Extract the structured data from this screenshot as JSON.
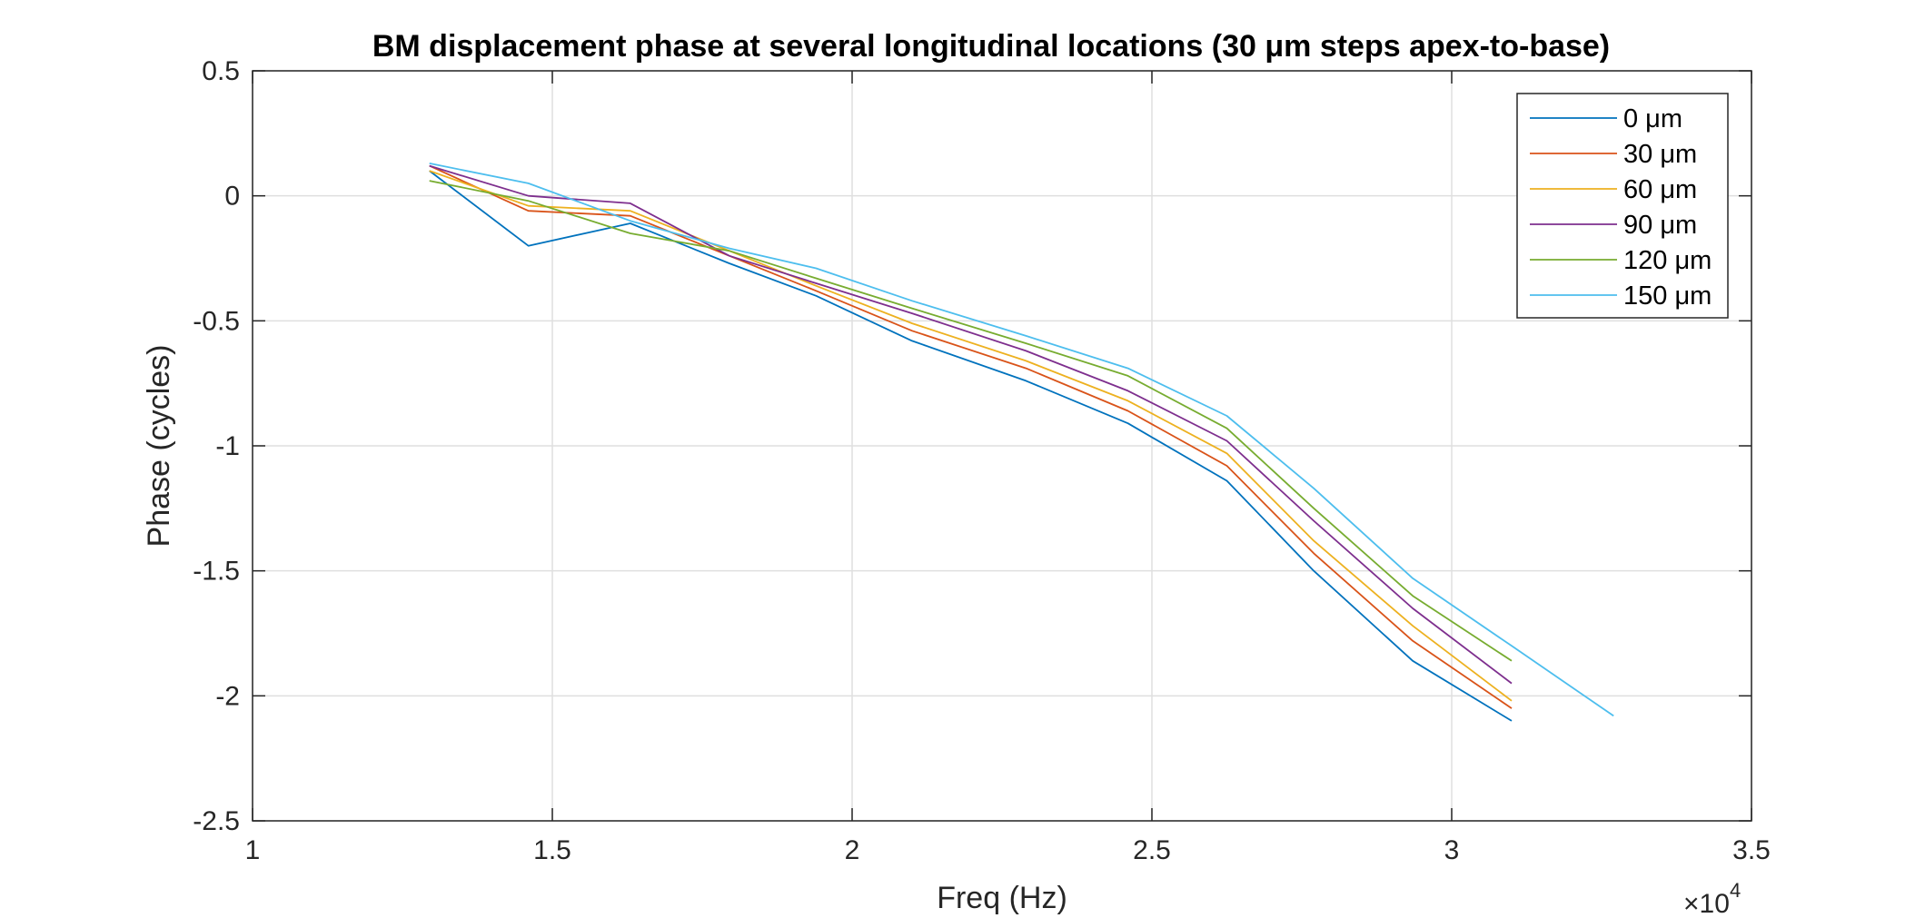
{
  "chart_data": {
    "type": "line",
    "title": "BM displacement phase at several longitudinal locations (30 μm steps apex-to-base)",
    "xlabel": "Freq (Hz)",
    "ylabel": "Phase (cycles)",
    "x_exponent_label": "×10",
    "x_exponent_power": "4",
    "xlim": [
      10000,
      35000
    ],
    "ylim": [
      -2.5,
      0.5
    ],
    "xticks": [
      10000,
      15000,
      20000,
      25000,
      30000,
      35000
    ],
    "xtick_labels": [
      "1",
      "1.5",
      "2",
      "2.5",
      "3",
      "3.5"
    ],
    "yticks": [
      0.5,
      0,
      -0.5,
      -1,
      -1.5,
      -2,
      -2.5
    ],
    "ytick_labels": [
      "0.5",
      "0",
      "-0.5",
      "-1",
      "-1.5",
      "-2",
      "-2.5"
    ],
    "grid": true,
    "legend_position": "top-right",
    "series": [
      {
        "name": "0 μm",
        "color": "#0072BD",
        "x": [
          12950,
          14600,
          16300,
          17950,
          19400,
          21000,
          22900,
          24600,
          26250,
          27700,
          29350,
          31000
        ],
        "y": [
          0.1,
          -0.2,
          -0.11,
          -0.27,
          -0.4,
          -0.58,
          -0.74,
          -0.91,
          -1.14,
          -1.5,
          -1.86,
          -2.1
        ]
      },
      {
        "name": "30 μm",
        "color": "#D95319",
        "x": [
          12950,
          14600,
          16300,
          17950,
          19400,
          21000,
          22900,
          24600,
          26250,
          27700,
          29350,
          31000
        ],
        "y": [
          0.12,
          -0.06,
          -0.08,
          -0.24,
          -0.38,
          -0.54,
          -0.69,
          -0.86,
          -1.08,
          -1.43,
          -1.78,
          -2.05
        ]
      },
      {
        "name": "60 μm",
        "color": "#EDB120",
        "x": [
          12950,
          14600,
          16300,
          17950,
          19400,
          21000,
          22900,
          24600,
          26250,
          27700,
          29350,
          31000
        ],
        "y": [
          0.1,
          -0.04,
          -0.06,
          -0.22,
          -0.36,
          -0.51,
          -0.66,
          -0.82,
          -1.03,
          -1.38,
          -1.72,
          -2.02
        ]
      },
      {
        "name": "90 μm",
        "color": "#7E2F8E",
        "x": [
          12950,
          14600,
          16300,
          17950,
          19400,
          21000,
          22900,
          24600,
          26250,
          27700,
          29350,
          31000
        ],
        "y": [
          0.12,
          0.0,
          -0.03,
          -0.24,
          -0.35,
          -0.47,
          -0.62,
          -0.78,
          -0.98,
          -1.3,
          -1.65,
          -1.95
        ]
      },
      {
        "name": "120 μm",
        "color": "#77AC30",
        "x": [
          12950,
          14600,
          16300,
          17950,
          19400,
          21000,
          22900,
          24600,
          26250,
          27700,
          29350,
          31000
        ],
        "y": [
          0.06,
          -0.02,
          -0.15,
          -0.22,
          -0.33,
          -0.45,
          -0.59,
          -0.72,
          -0.93,
          -1.25,
          -1.6,
          -1.86
        ]
      },
      {
        "name": "150 μm",
        "color": "#4DBEEE",
        "x": [
          12950,
          14600,
          16300,
          17950,
          19400,
          21000,
          22900,
          24600,
          26250,
          27700,
          29350,
          31000,
          32700
        ],
        "y": [
          0.13,
          0.05,
          -0.1,
          -0.21,
          -0.29,
          -0.42,
          -0.56,
          -0.69,
          -0.88,
          -1.17,
          -1.53,
          -1.8,
          -2.08
        ]
      }
    ]
  }
}
